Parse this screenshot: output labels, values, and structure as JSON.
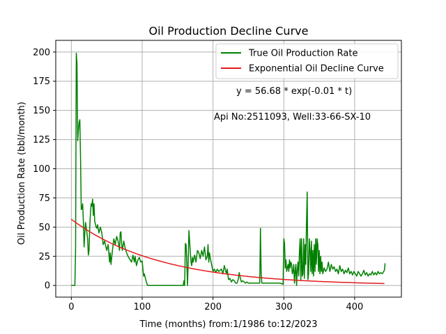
{
  "chart_data": {
    "type": "line",
    "title": "Oil Production Decline Curve",
    "xlabel": "Time (months) from:1/1986 to:12/2023",
    "ylabel": "Oil Production Rate (bbl/month)",
    "xlim": [
      -22,
      466
    ],
    "ylim": [
      -10,
      210
    ],
    "xticks": [
      0,
      100,
      200,
      300,
      400
    ],
    "yticks": [
      0,
      25,
      50,
      75,
      100,
      125,
      150,
      175,
      200
    ],
    "grid": true,
    "legend_position": "top-right",
    "annotations": [
      {
        "text": "y = 56.68 * exp(-0.01 * t)",
        "x": 232,
        "y": 165
      },
      {
        "text": "Api No:2511093, Well:33-66-SX-10",
        "x": 202,
        "y": 143
      }
    ],
    "series": [
      {
        "name": "True Oil Production Rate",
        "color": "#008000",
        "points": [
          [
            0,
            0
          ],
          [
            5,
            0
          ],
          [
            6,
            30
          ],
          [
            7,
            199
          ],
          [
            8,
            190
          ],
          [
            9,
            124
          ],
          [
            10,
            133
          ],
          [
            11,
            140
          ],
          [
            12,
            142
          ],
          [
            13,
            110
          ],
          [
            14,
            65
          ],
          [
            15,
            66
          ],
          [
            16,
            70
          ],
          [
            17,
            55
          ],
          [
            18,
            33
          ],
          [
            19,
            45
          ],
          [
            20,
            54
          ],
          [
            22,
            45
          ],
          [
            23,
            40
          ],
          [
            24,
            26
          ],
          [
            25,
            30
          ],
          [
            26,
            50
          ],
          [
            27,
            62
          ],
          [
            28,
            70
          ],
          [
            29,
            68
          ],
          [
            30,
            74
          ],
          [
            31,
            60
          ],
          [
            32,
            70
          ],
          [
            33,
            55
          ],
          [
            35,
            50
          ],
          [
            36,
            49
          ],
          [
            37,
            52
          ],
          [
            39,
            45
          ],
          [
            41,
            50
          ],
          [
            43,
            45
          ],
          [
            45,
            35
          ],
          [
            47,
            38
          ],
          [
            50,
            30
          ],
          [
            52,
            35
          ],
          [
            54,
            20
          ],
          [
            55,
            28
          ],
          [
            56,
            18
          ],
          [
            58,
            30
          ],
          [
            60,
            40
          ],
          [
            62,
            35
          ],
          [
            64,
            42
          ],
          [
            66,
            38
          ],
          [
            68,
            30
          ],
          [
            69,
            45
          ],
          [
            70,
            46
          ],
          [
            71,
            36
          ],
          [
            72,
            30
          ],
          [
            74,
            38
          ],
          [
            76,
            32
          ],
          [
            78,
            28
          ],
          [
            80,
            25
          ],
          [
            83,
            22
          ],
          [
            85,
            20
          ],
          [
            87,
            26
          ],
          [
            89,
            20
          ],
          [
            90,
            25
          ],
          [
            92,
            17
          ],
          [
            94,
            22
          ],
          [
            96,
            24
          ],
          [
            98,
            20
          ],
          [
            100,
            21
          ],
          [
            102,
            8
          ],
          [
            103,
            10
          ],
          [
            105,
            5
          ],
          [
            107,
            1
          ],
          [
            108,
            0
          ],
          [
            120,
            0
          ],
          [
            140,
            0
          ],
          [
            158,
            0
          ],
          [
            159,
            4
          ],
          [
            160,
            0
          ],
          [
            161,
            36
          ],
          [
            162,
            35
          ],
          [
            163,
            20
          ],
          [
            164,
            0
          ],
          [
            165,
            20
          ],
          [
            166,
            47
          ],
          [
            167,
            38
          ],
          [
            168,
            28
          ],
          [
            169,
            20
          ],
          [
            170,
            17
          ],
          [
            171,
            24
          ],
          [
            172,
            20
          ],
          [
            174,
            26
          ],
          [
            176,
            20
          ],
          [
            178,
            30
          ],
          [
            180,
            28
          ],
          [
            182,
            23
          ],
          [
            184,
            30
          ],
          [
            186,
            25
          ],
          [
            188,
            33
          ],
          [
            190,
            22
          ],
          [
            192,
            25
          ],
          [
            193,
            35
          ],
          [
            194,
            20
          ],
          [
            195,
            28
          ],
          [
            196,
            24
          ],
          [
            198,
            18
          ],
          [
            200,
            12
          ],
          [
            202,
            14
          ],
          [
            204,
            11
          ],
          [
            206,
            14
          ],
          [
            208,
            12
          ],
          [
            210,
            13
          ],
          [
            212,
            14
          ],
          [
            214,
            10
          ],
          [
            216,
            17
          ],
          [
            218,
            12
          ],
          [
            219,
            10
          ],
          [
            220,
            14
          ],
          [
            222,
            5
          ],
          [
            224,
            6
          ],
          [
            226,
            3
          ],
          [
            228,
            5
          ],
          [
            230,
            4
          ],
          [
            232,
            2
          ],
          [
            234,
            2
          ],
          [
            236,
            6
          ],
          [
            237,
            11
          ],
          [
            238,
            8
          ],
          [
            240,
            3
          ],
          [
            242,
            4
          ],
          [
            244,
            3
          ],
          [
            246,
            2
          ],
          [
            248,
            3
          ],
          [
            250,
            2
          ],
          [
            255,
            2
          ],
          [
            262,
            2
          ],
          [
            266,
            2
          ],
          [
            267,
            49
          ],
          [
            268,
            10
          ],
          [
            269,
            2
          ],
          [
            275,
            2
          ],
          [
            285,
            2
          ],
          [
            295,
            2
          ],
          [
            299,
            1
          ],
          [
            300,
            40
          ],
          [
            301,
            36
          ],
          [
            302,
            15
          ],
          [
            303,
            22
          ],
          [
            304,
            12
          ],
          [
            305,
            15
          ],
          [
            306,
            18
          ],
          [
            307,
            12
          ],
          [
            308,
            22
          ],
          [
            309,
            15
          ],
          [
            310,
            20
          ],
          [
            311,
            18
          ],
          [
            312,
            10
          ],
          [
            313,
            12
          ],
          [
            314,
            18
          ],
          [
            315,
            2
          ],
          [
            316,
            12
          ],
          [
            317,
            18
          ],
          [
            318,
            0
          ],
          [
            319,
            13
          ],
          [
            320,
            20
          ],
          [
            321,
            8
          ],
          [
            322,
            28
          ],
          [
            323,
            40
          ],
          [
            324,
            5
          ],
          [
            325,
            40
          ],
          [
            326,
            8
          ],
          [
            327,
            10
          ],
          [
            328,
            40
          ],
          [
            329,
            6
          ],
          [
            330,
            35
          ],
          [
            331,
            18
          ],
          [
            332,
            53
          ],
          [
            333,
            80
          ],
          [
            334,
            5
          ],
          [
            335,
            10
          ],
          [
            336,
            40
          ],
          [
            337,
            30
          ],
          [
            338,
            12
          ],
          [
            339,
            38
          ],
          [
            340,
            10
          ],
          [
            341,
            30
          ],
          [
            342,
            8
          ],
          [
            343,
            35
          ],
          [
            344,
            12
          ],
          [
            345,
            40
          ],
          [
            346,
            18
          ],
          [
            347,
            40
          ],
          [
            348,
            35
          ],
          [
            349,
            12
          ],
          [
            350,
            30
          ],
          [
            351,
            10
          ],
          [
            352,
            25
          ],
          [
            353,
            12
          ],
          [
            354,
            20
          ],
          [
            355,
            10
          ],
          [
            357,
            15
          ],
          [
            359,
            12
          ],
          [
            361,
            14
          ],
          [
            363,
            20
          ],
          [
            365,
            12
          ],
          [
            367,
            18
          ],
          [
            369,
            14
          ],
          [
            371,
            16
          ],
          [
            373,
            12
          ],
          [
            375,
            14
          ],
          [
            377,
            10
          ],
          [
            379,
            17
          ],
          [
            381,
            12
          ],
          [
            383,
            14
          ],
          [
            385,
            10
          ],
          [
            387,
            13
          ],
          [
            389,
            11
          ],
          [
            391,
            15
          ],
          [
            393,
            10
          ],
          [
            395,
            12
          ],
          [
            397,
            9
          ],
          [
            399,
            12
          ],
          [
            401,
            10
          ],
          [
            403,
            8
          ],
          [
            405,
            12
          ],
          [
            407,
            10
          ],
          [
            409,
            8
          ],
          [
            411,
            10
          ],
          [
            413,
            13
          ],
          [
            415,
            9
          ],
          [
            417,
            11
          ],
          [
            419,
            8
          ],
          [
            421,
            10
          ],
          [
            423,
            9
          ],
          [
            425,
            12
          ],
          [
            427,
            9
          ],
          [
            429,
            11
          ],
          [
            431,
            9
          ],
          [
            433,
            12
          ],
          [
            435,
            10
          ],
          [
            437,
            11
          ],
          [
            439,
            10
          ],
          [
            441,
            12
          ],
          [
            442,
            13
          ],
          [
            443,
            19
          ]
        ]
      },
      {
        "name": "Exponential Oil Decline Curve",
        "color": "#e41a1c",
        "equation": {
          "a": 56.68,
          "b": -0.008,
          "t_min": 0,
          "t_max": 443
        }
      }
    ]
  }
}
